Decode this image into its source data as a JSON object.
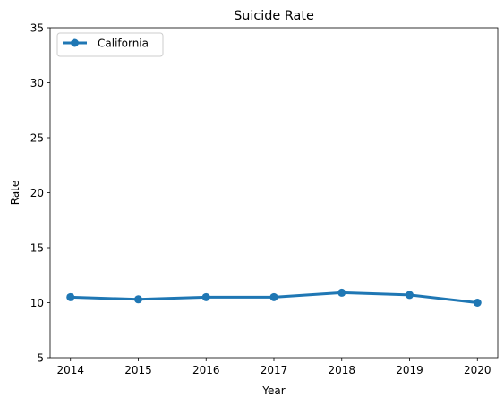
{
  "chart_data": {
    "type": "line",
    "title": "Suicide Rate",
    "xlabel": "Year",
    "ylabel": "Rate",
    "x": [
      2014,
      2015,
      2016,
      2017,
      2018,
      2019,
      2020
    ],
    "x_tick_labels": [
      "2014",
      "2015",
      "2016",
      "2017",
      "2018",
      "2019",
      "2020"
    ],
    "y_ticks": [
      5,
      10,
      15,
      20,
      25,
      30,
      35
    ],
    "y_tick_labels": [
      "5",
      "10",
      "15",
      "20",
      "25",
      "30",
      "35"
    ],
    "ylim": [
      5,
      35
    ],
    "xlim": [
      2013.7,
      2020.3
    ],
    "grid": false,
    "legend_position": "upper-left",
    "series": [
      {
        "name": "California",
        "color": "#1f77b4",
        "marker": "circle",
        "values": [
          10.5,
          10.3,
          10.5,
          10.5,
          10.9,
          10.7,
          10.0
        ]
      }
    ]
  }
}
